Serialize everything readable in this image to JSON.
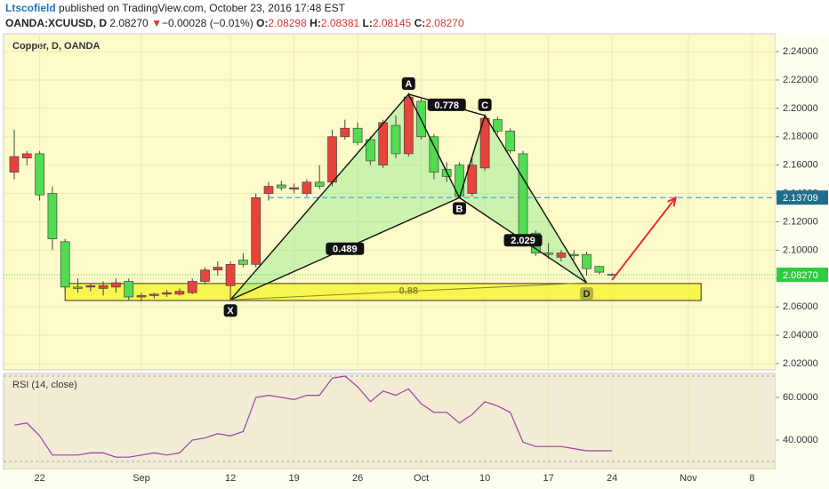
{
  "header": {
    "author": "Ltscofield",
    "published": "published on TradingView.com, October 23, 2016 17:48 EST",
    "symbol": "OANDA:XCUUSD, D",
    "last": "2.08270",
    "arrow": "▼",
    "change": "−0.00028 (−0.01%)",
    "o_label": "O:",
    "o": "2.08298",
    "h_label": "H:",
    "h": "2.08381",
    "l_label": "L:",
    "l": "2.08145",
    "c_label": "C:",
    "c": "2.08270"
  },
  "chart_data": [
    {
      "type": "candlestick",
      "title": "Copper, D, OANDA",
      "categories": [
        null,
        null,
        "22",
        null,
        null,
        null,
        null,
        null,
        null,
        null,
        "Sep",
        null,
        null,
        null,
        null,
        null,
        null,
        "12",
        null,
        null,
        null,
        null,
        "19",
        null,
        null,
        null,
        null,
        "26",
        null,
        null,
        null,
        null,
        "Oct",
        null,
        null,
        null,
        null,
        "10",
        null,
        null,
        null,
        null,
        "17",
        null,
        null,
        null,
        null,
        "24",
        null,
        null,
        null,
        null,
        null,
        "Nov",
        null,
        null,
        null,
        null,
        "8",
        null
      ],
      "open": [
        2.155,
        2.165,
        2.168,
        2.14,
        2.106,
        2.074,
        2.074,
        2.073,
        2.074,
        2.078,
        2.067,
        2.068,
        2.069,
        2.069,
        2.07,
        2.078,
        2.086,
        2.075,
        2.093,
        2.09,
        2.14,
        2.146,
        2.143,
        2.14,
        2.148,
        2.148,
        2.18,
        2.186,
        2.178,
        2.16,
        2.188,
        2.168,
        2.205,
        2.18,
        2.157,
        2.16,
        2.14,
        2.158,
        2.192,
        2.184,
        2.168,
        2.112,
        2.098,
        2.095,
        2.097,
        2.097,
        2.0885,
        2.08298,
        null,
        null,
        null,
        null,
        null,
        null,
        null,
        null,
        null,
        null,
        null,
        null
      ],
      "high": [
        2.185,
        2.17,
        2.17,
        2.145,
        2.108,
        2.08,
        2.076,
        2.078,
        2.08,
        2.08,
        2.07,
        2.07,
        2.072,
        2.073,
        2.08,
        2.088,
        2.092,
        2.092,
        2.098,
        2.14,
        2.148,
        2.149,
        2.147,
        2.15,
        2.16,
        2.185,
        2.192,
        2.19,
        2.18,
        2.192,
        2.195,
        2.211,
        2.207,
        2.182,
        2.162,
        2.162,
        2.165,
        2.196,
        2.194,
        2.186,
        2.17,
        2.114,
        2.105,
        2.1,
        2.1,
        2.099,
        2.089,
        2.08381,
        null,
        null,
        null,
        null,
        null,
        null,
        null,
        null,
        null,
        null,
        null,
        null
      ],
      "low": [
        2.15,
        2.16,
        2.135,
        2.1,
        2.07,
        2.07,
        2.071,
        2.068,
        2.07,
        2.065,
        2.064,
        2.066,
        2.067,
        2.068,
        2.069,
        2.076,
        2.082,
        2.065,
        2.088,
        2.088,
        2.135,
        2.142,
        2.14,
        2.138,
        2.143,
        2.145,
        2.178,
        2.174,
        2.16,
        2.158,
        2.165,
        2.166,
        2.178,
        2.15,
        2.148,
        2.137,
        2.138,
        2.156,
        2.182,
        2.168,
        2.105,
        2.096,
        2.094,
        2.092,
        2.093,
        2.082,
        2.083,
        2.08145,
        null,
        null,
        null,
        null,
        null,
        null,
        null,
        null,
        null,
        null,
        null,
        null
      ],
      "close": [
        2.166,
        2.168,
        2.139,
        2.108,
        2.074,
        2.073,
        2.075,
        2.075,
        2.077,
        2.067,
        2.068,
        2.069,
        2.07,
        2.071,
        2.078,
        2.086,
        2.088,
        2.09,
        2.09,
        2.137,
        2.145,
        2.144,
        2.144,
        2.148,
        2.145,
        2.18,
        2.186,
        2.176,
        2.163,
        2.19,
        2.168,
        2.208,
        2.18,
        2.155,
        2.152,
        2.138,
        2.16,
        2.193,
        2.184,
        2.17,
        2.11,
        2.098,
        2.097,
        2.098,
        2.096,
        2.087,
        2.0845,
        2.0827,
        null,
        null,
        null,
        null,
        null,
        null,
        null,
        null,
        null,
        null,
        null,
        null
      ],
      "up_color": "#e8433a",
      "down_color": "#52dc52",
      "ylim": [
        2.0156,
        2.2526
      ],
      "yticks": [
        {
          "value": 2.02,
          "label": "2.02000"
        },
        {
          "value": 2.04,
          "label": "2.04000"
        },
        {
          "value": 2.06,
          "label": "2.06000"
        },
        {
          "value": 2.08,
          "label": "2.08000"
        },
        {
          "value": 2.1,
          "label": "2.10000"
        },
        {
          "value": 2.12,
          "label": "2.12000"
        },
        {
          "value": 2.14,
          "label": "2.14000"
        },
        {
          "value": 2.16,
          "label": "2.16000"
        },
        {
          "value": 2.18,
          "label": "2.18000"
        },
        {
          "value": 2.2,
          "label": "2.20000"
        },
        {
          "value": 2.22,
          "label": "2.22000"
        },
        {
          "value": 2.24,
          "label": "2.24000"
        }
      ],
      "pattern": {
        "points": [
          {
            "label": "X",
            "x": 17,
            "y": 2.065
          },
          {
            "label": "A",
            "x": 31,
            "y": 2.21
          },
          {
            "label": "B",
            "x": 35,
            "y": 2.137
          },
          {
            "label": "C",
            "x": 37,
            "y": 2.195
          },
          {
            "label": "D",
            "x": 45,
            "y": 2.077
          }
        ],
        "ratios": [
          0.778,
          0.489,
          2.029,
          0.88
        ]
      },
      "zone": {
        "x": [
          4,
          54
        ],
        "y": [
          2.0645,
          2.0765
        ]
      },
      "level": {
        "value": 2.13709,
        "label": "2.13709",
        "x": 20,
        "color": "#4aa3df"
      },
      "last_price": {
        "value": 2.0827,
        "label": "2.08270",
        "color": "#2ecc40"
      },
      "projection": {
        "x": [
          47,
          52
        ],
        "y": [
          2.079,
          2.137
        ],
        "color": "#e53030"
      }
    },
    {
      "type": "line",
      "title": "RSI (14, close)",
      "color": "#9b3fa8",
      "values": [
        47,
        48,
        42,
        33,
        33,
        33,
        34,
        34,
        32,
        32,
        33,
        34,
        33,
        34,
        40,
        41,
        43,
        42,
        44,
        60,
        61,
        60,
        59,
        61,
        61,
        69,
        70,
        65,
        58,
        63,
        61,
        64,
        57,
        53,
        53,
        48,
        52,
        58,
        56,
        53,
        39,
        37,
        37,
        37,
        36,
        35,
        35,
        35,
        null,
        null,
        null,
        null,
        null,
        null,
        null,
        null,
        null,
        null,
        null,
        null
      ],
      "ylim": [
        26.25,
        71.25
      ],
      "yticks": [
        {
          "value": 40,
          "label": "40.0000"
        },
        {
          "value": 60,
          "label": "60.0000"
        }
      ],
      "bands": [
        30,
        70
      ]
    }
  ]
}
